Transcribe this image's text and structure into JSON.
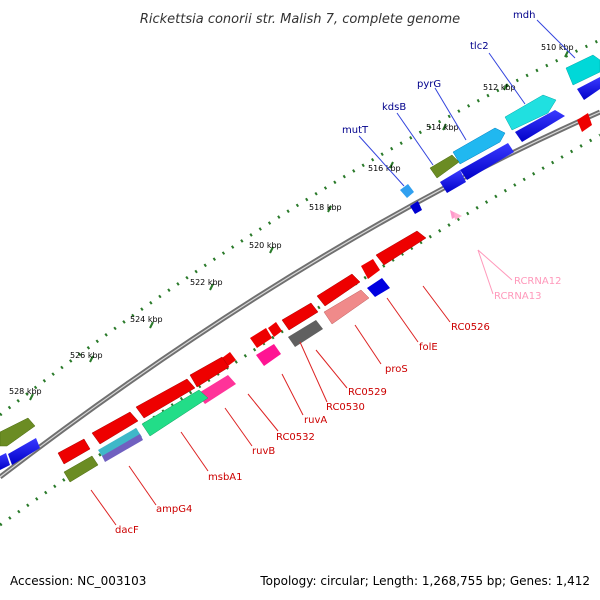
{
  "title": "Rickettsia conorii str. Malish 7, complete genome",
  "footer": {
    "accession": "Accession: NC_003103",
    "summary": "Topology: circular; Length: 1,268,755 bp; Genes: 1,412"
  },
  "ticks": [
    "510 kbp",
    "512 kbp",
    "514 kbp",
    "516 kbp",
    "518 kbp",
    "520 kbp",
    "522 kbp",
    "524 kbp",
    "526 kbp",
    "528 kbp"
  ],
  "upper_labels": [
    "mdh",
    "tlc2",
    "pyrG",
    "kdsB",
    "mutT"
  ],
  "lower_labels": [
    "RC0526",
    "folE",
    "proS",
    "RC0529",
    "RC0530",
    "ruvA",
    "RC0532",
    "ruvB",
    "msbA1",
    "ampG4",
    "dacF"
  ],
  "rna_labels": [
    "RCRNA12",
    "RCRNA13"
  ],
  "colors": {
    "blue_label": "#00008b",
    "red_label": "#cc0000",
    "pink_label": "#ff99bb",
    "backbone": "#808080",
    "dots": "#2a7a2a"
  }
}
